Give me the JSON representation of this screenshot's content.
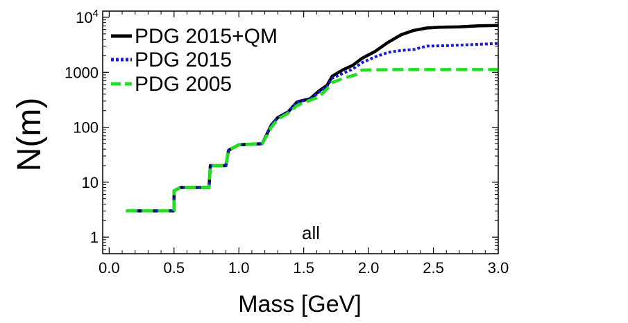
{
  "chart_data": {
    "type": "line",
    "title": "",
    "xlabel": "Mass [GeV]",
    "ylabel": "N(m)",
    "xlim": [
      -0.05,
      3.0
    ],
    "ylim": [
      0.5,
      13000
    ],
    "yscale": "log",
    "grid": false,
    "legend_position": "top-left",
    "annotation": "all",
    "x_ticks": [
      {
        "value": 0.0,
        "label": "0.0"
      },
      {
        "value": 0.5,
        "label": "0.5"
      },
      {
        "value": 1.0,
        "label": "1.0"
      },
      {
        "value": 1.5,
        "label": "1.5"
      },
      {
        "value": 2.0,
        "label": "2.0"
      },
      {
        "value": 2.5,
        "label": "2.5"
      },
      {
        "value": 3.0,
        "label": "3.0"
      }
    ],
    "y_ticks": [
      {
        "value": 1,
        "label": "1"
      },
      {
        "value": 10,
        "label": "10"
      },
      {
        "value": 100,
        "label": "100"
      },
      {
        "value": 1000,
        "label": "1000"
      },
      {
        "value": 10000,
        "label": "10",
        "sup": "4"
      }
    ],
    "series": [
      {
        "name": "PDG 2015+QM",
        "color": "#000000",
        "dash": "solid",
        "points": [
          [
            0.13,
            3
          ],
          [
            0.5,
            3
          ],
          [
            0.5,
            7
          ],
          [
            0.55,
            8
          ],
          [
            0.77,
            8
          ],
          [
            0.78,
            20
          ],
          [
            0.9,
            20
          ],
          [
            0.92,
            38
          ],
          [
            1.0,
            48
          ],
          [
            1.18,
            50
          ],
          [
            1.25,
            110
          ],
          [
            1.3,
            150
          ],
          [
            1.38,
            190
          ],
          [
            1.45,
            290
          ],
          [
            1.55,
            330
          ],
          [
            1.62,
            460
          ],
          [
            1.68,
            580
          ],
          [
            1.72,
            850
          ],
          [
            1.8,
            1100
          ],
          [
            1.88,
            1350
          ],
          [
            1.95,
            1800
          ],
          [
            2.05,
            2400
          ],
          [
            2.15,
            3500
          ],
          [
            2.25,
            4800
          ],
          [
            2.35,
            5800
          ],
          [
            2.45,
            6400
          ],
          [
            2.55,
            6600
          ],
          [
            2.7,
            6700
          ],
          [
            2.85,
            7000
          ],
          [
            3.0,
            7100
          ]
        ]
      },
      {
        "name": "PDG 2015",
        "color": "#1a1adb",
        "dash": "dotted",
        "points": [
          [
            0.13,
            3
          ],
          [
            0.5,
            3
          ],
          [
            0.5,
            7
          ],
          [
            0.55,
            8
          ],
          [
            0.77,
            8
          ],
          [
            0.78,
            20
          ],
          [
            0.9,
            20
          ],
          [
            0.92,
            38
          ],
          [
            1.0,
            48
          ],
          [
            1.18,
            50
          ],
          [
            1.25,
            110
          ],
          [
            1.3,
            150
          ],
          [
            1.38,
            190
          ],
          [
            1.45,
            290
          ],
          [
            1.55,
            320
          ],
          [
            1.62,
            440
          ],
          [
            1.68,
            560
          ],
          [
            1.72,
            780
          ],
          [
            1.8,
            950
          ],
          [
            1.88,
            1150
          ],
          [
            1.95,
            1500
          ],
          [
            2.05,
            1900
          ],
          [
            2.15,
            2300
          ],
          [
            2.25,
            2500
          ],
          [
            2.35,
            2600
          ],
          [
            2.45,
            3000
          ],
          [
            2.6,
            3050
          ],
          [
            2.8,
            3200
          ],
          [
            3.0,
            3350
          ]
        ]
      },
      {
        "name": "PDG 2005",
        "color": "#22dd22",
        "dash": "dashed",
        "points": [
          [
            0.13,
            3
          ],
          [
            0.5,
            3
          ],
          [
            0.5,
            7
          ],
          [
            0.55,
            8
          ],
          [
            0.77,
            8
          ],
          [
            0.78,
            20
          ],
          [
            0.9,
            20
          ],
          [
            0.92,
            38
          ],
          [
            1.0,
            48
          ],
          [
            1.18,
            50
          ],
          [
            1.25,
            100
          ],
          [
            1.3,
            140
          ],
          [
            1.38,
            180
          ],
          [
            1.45,
            250
          ],
          [
            1.55,
            310
          ],
          [
            1.62,
            360
          ],
          [
            1.68,
            500
          ],
          [
            1.72,
            650
          ],
          [
            1.8,
            770
          ],
          [
            1.9,
            900
          ],
          [
            1.95,
            1100
          ],
          [
            2.2,
            1120
          ],
          [
            2.6,
            1120
          ],
          [
            3.0,
            1120
          ]
        ]
      }
    ]
  }
}
